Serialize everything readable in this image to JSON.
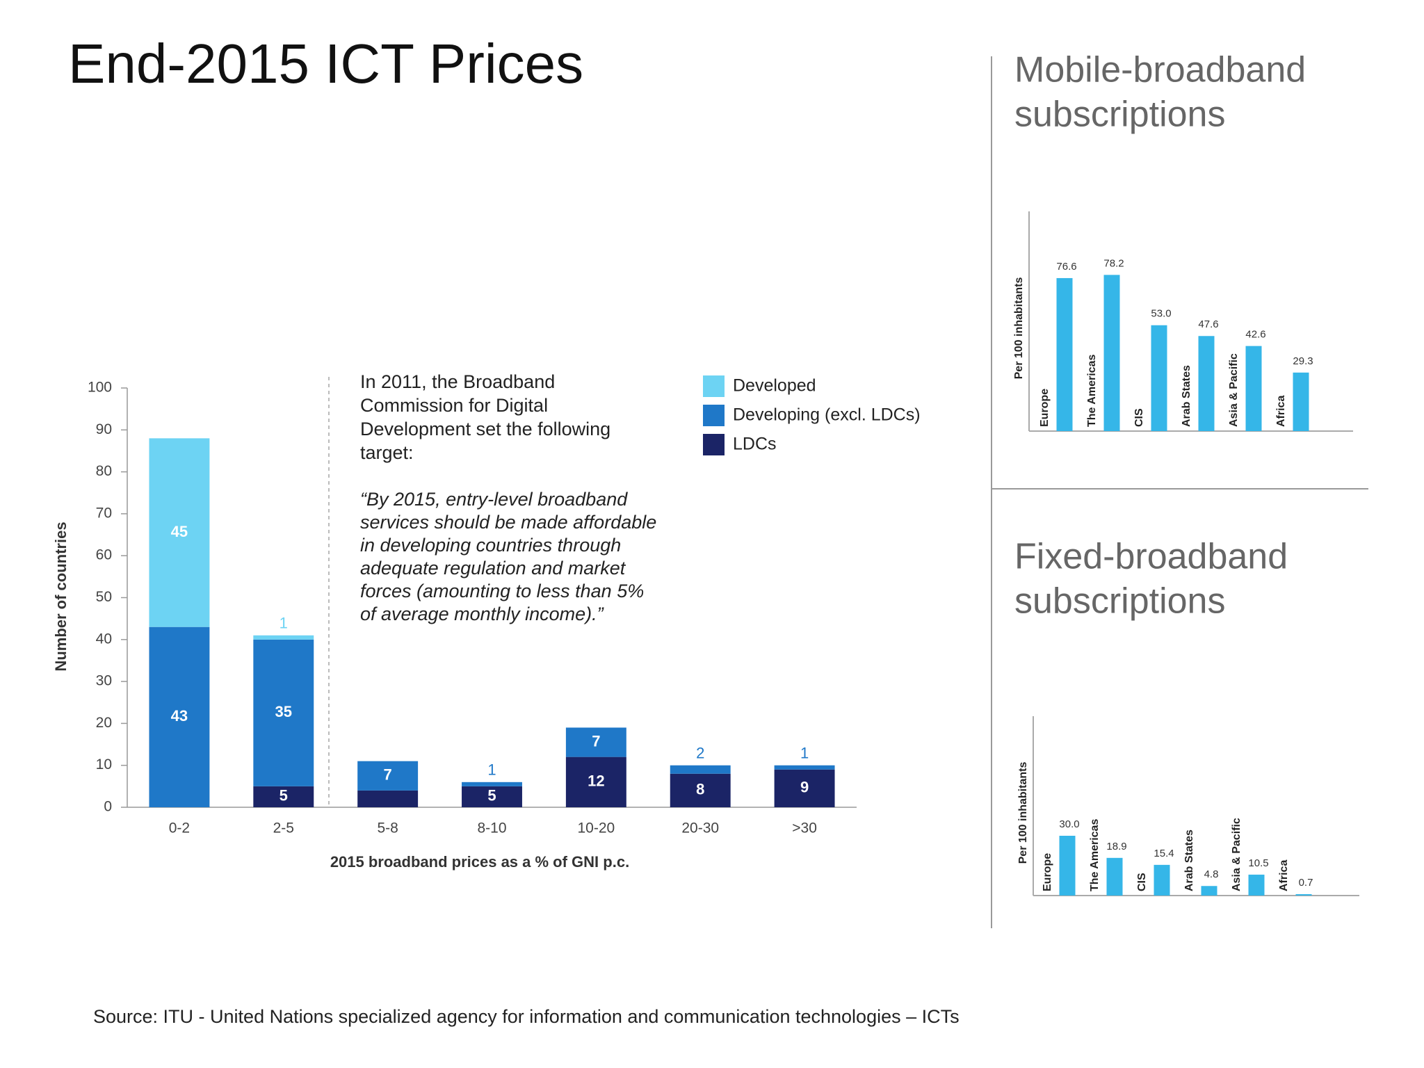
{
  "title": "End-2015 ICT Prices",
  "source": "Source: ITU - United Nations specialized agency for information and communication technologies – ICTs",
  "chart_data": [
    {
      "type": "bar",
      "stacked": true,
      "categories": [
        "0-2",
        "2-5",
        "5-8",
        "8-10",
        "10-20",
        "20-30",
        ">30"
      ],
      "series": [
        {
          "name": "LDCs",
          "color": "#1b2466",
          "values": [
            null,
            5,
            4,
            5,
            12,
            8,
            9
          ]
        },
        {
          "name": "Developing (excl. LDCs)",
          "color": "#1f78c8",
          "values": [
            43,
            35,
            7,
            1,
            7,
            2,
            1
          ]
        },
        {
          "name": "Developed",
          "color": "#6dd3f3",
          "values": [
            45,
            1,
            null,
            null,
            null,
            null,
            null
          ]
        }
      ],
      "ylim": [
        0,
        100
      ],
      "yticks": [
        0,
        10,
        20,
        30,
        40,
        50,
        60,
        70,
        80,
        90,
        100
      ],
      "y_label": "Number of countries",
      "x_label": "2015 broadband prices as a % of GNI p.c.",
      "annotation": [
        "In 2011, the Broadband",
        "Commission for Digital",
        "Development set the following",
        "target:"
      ],
      "quote": [
        "“By 2015, entry-level broadband",
        "services should be made affordable",
        "in developing countries through",
        "adequate regulation and market",
        "forces (amounting to less than 5%",
        "of average monthly income).”"
      ]
    },
    {
      "type": "bar",
      "title": [
        "Mobile-broadband",
        "subscriptions"
      ],
      "categories": [
        "Europe",
        "The Americas",
        "CIS",
        "Arab States",
        "Asia & Pacific",
        "Africa"
      ],
      "values": [
        76.6,
        78.2,
        53.0,
        47.6,
        42.6,
        29.3
      ],
      "value_labels": [
        "76.6",
        "78.2",
        "53.0",
        "47.6",
        "42.6",
        "29.3"
      ],
      "color": "#35b6e8",
      "y_label": "Per 100 inhabitants",
      "ylim": [
        0,
        110
      ]
    },
    {
      "type": "bar",
      "title": [
        "Fixed-broadband",
        "subscriptions"
      ],
      "categories": [
        "Europe",
        "The Americas",
        "CIS",
        "Arab States",
        "Asia & Pacific",
        "Africa"
      ],
      "values": [
        30.0,
        18.9,
        15.4,
        4.8,
        10.5,
        0.7
      ],
      "value_labels": [
        "30.0",
        "18.9",
        "15.4",
        "4.8",
        "10.5",
        "0.7"
      ],
      "color": "#35b6e8",
      "y_label": "Per 100 inhabitants",
      "ylim": [
        0,
        90
      ]
    }
  ]
}
